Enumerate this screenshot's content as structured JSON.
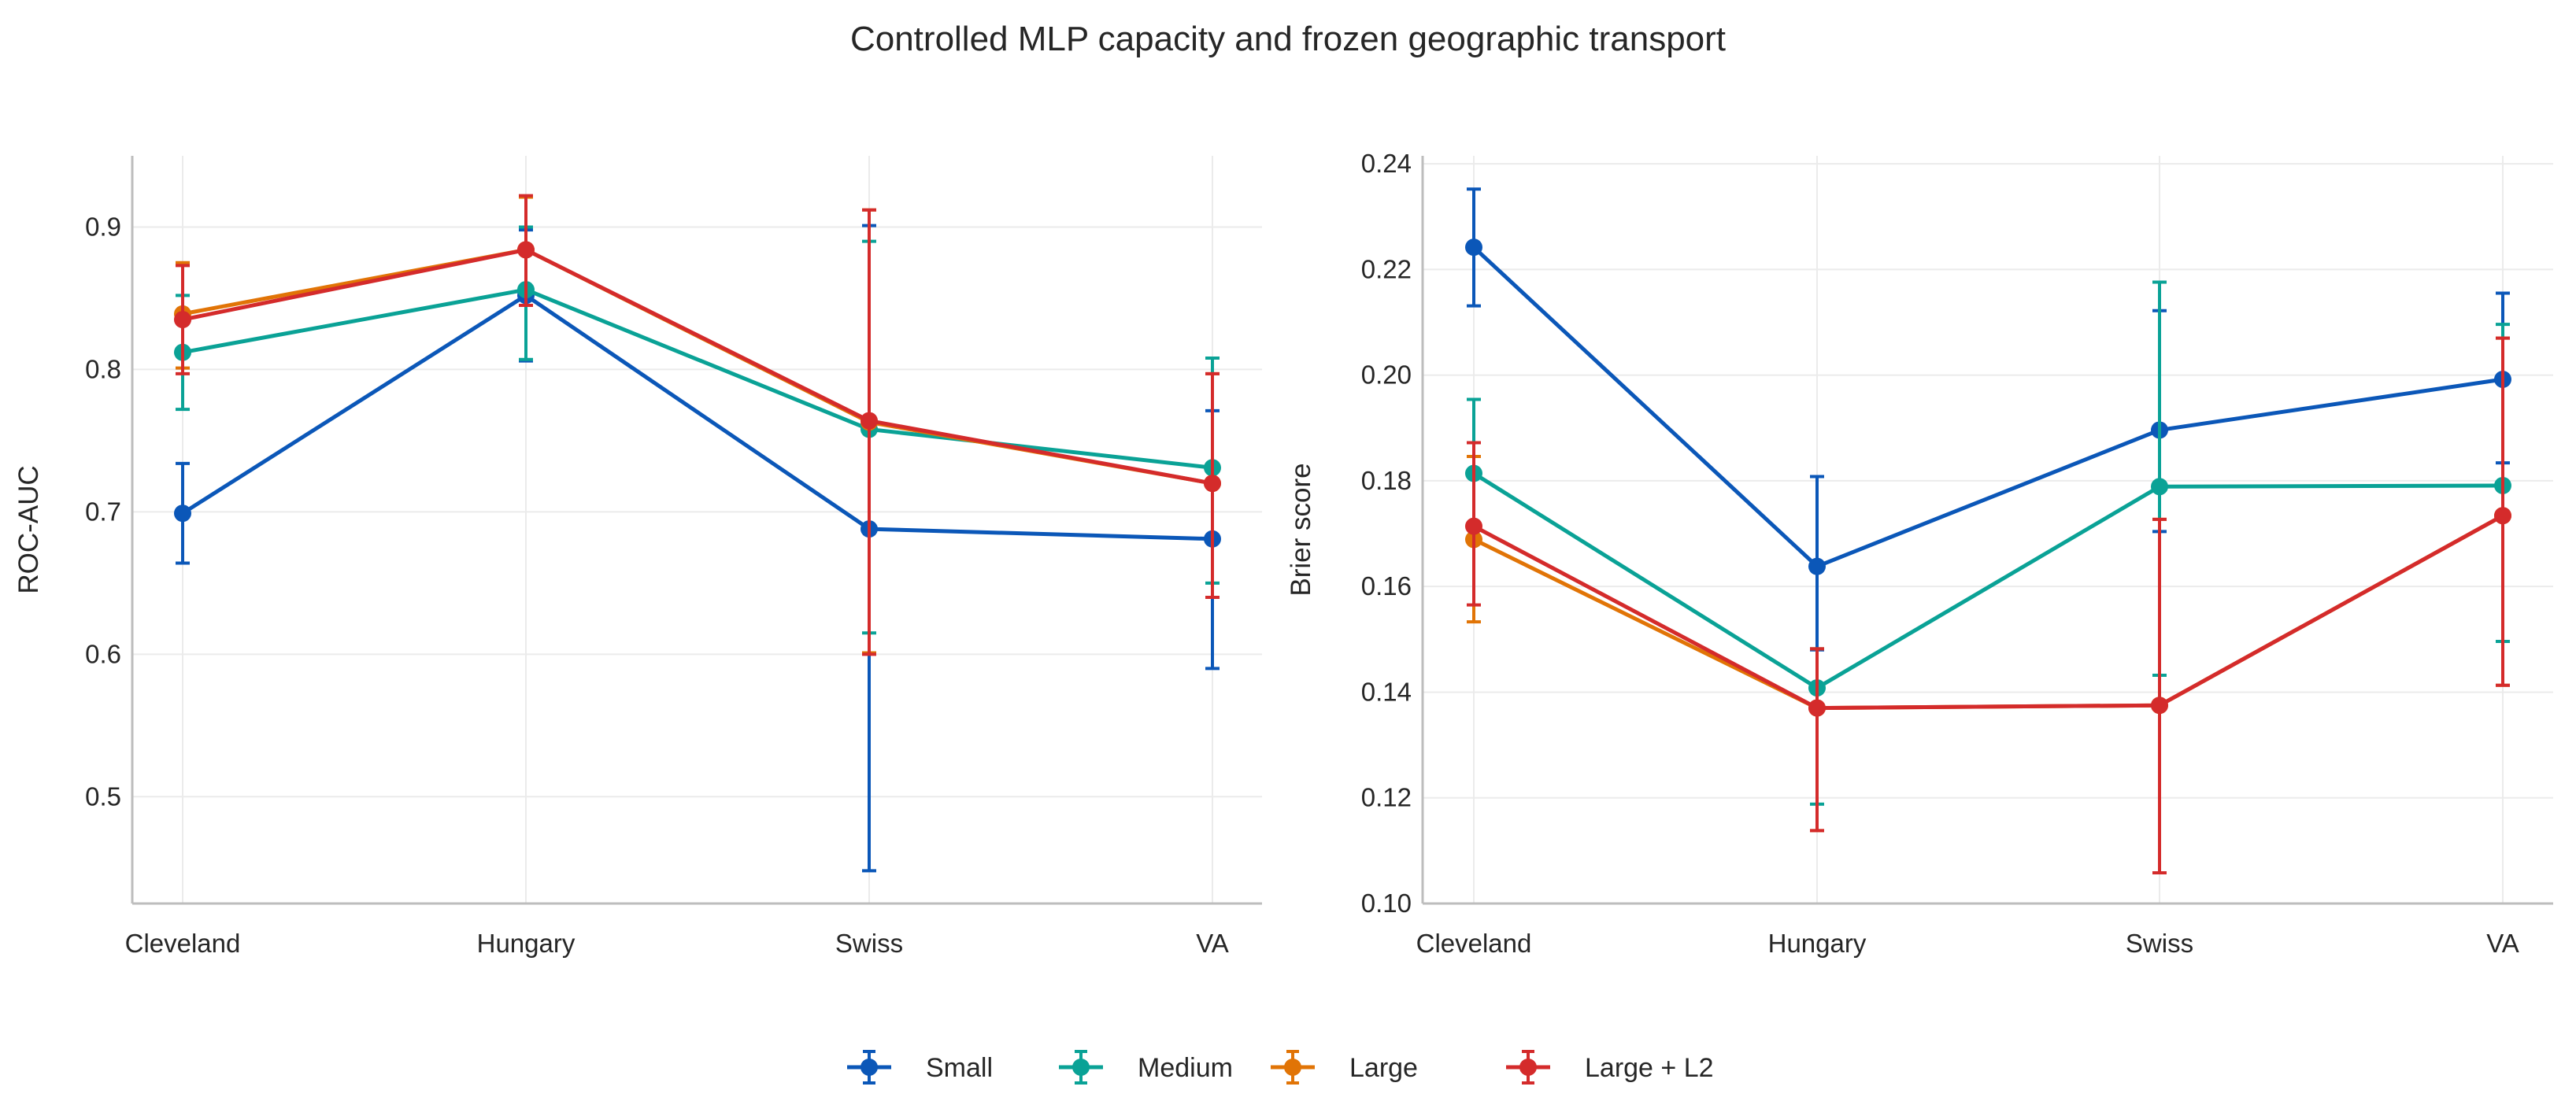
{
  "title": "Controlled MLP capacity and frozen geographic transport",
  "legend": {
    "position": "bottom-center"
  },
  "chart_data": [
    {
      "type": "line",
      "error_bars": true,
      "grid": true,
      "ylabel": "ROC-AUC",
      "xlabel": "",
      "categories": [
        "Cleveland",
        "Hungary",
        "Swiss",
        "VA"
      ],
      "ylim": [
        0.425,
        0.95
      ],
      "yticks": [
        0.5,
        0.6,
        0.7,
        0.8,
        0.9
      ],
      "ytick_labels": [
        "0.5",
        "0.6",
        "0.7",
        "0.8",
        "0.9"
      ],
      "series": [
        {
          "name": "Small",
          "color": "#0b57b8",
          "values": [
            0.699,
            0.852,
            0.688,
            0.681
          ],
          "lower": [
            0.664,
            0.806,
            0.448,
            0.59
          ],
          "upper": [
            0.734,
            0.898,
            0.901,
            0.771
          ]
        },
        {
          "name": "Medium",
          "color": "#0aa296",
          "values": [
            0.812,
            0.856,
            0.758,
            0.731
          ],
          "lower": [
            0.772,
            0.807,
            0.615,
            0.65
          ],
          "upper": [
            0.852,
            0.9,
            0.89,
            0.808
          ]
        },
        {
          "name": "Large",
          "color": "#e17406",
          "values": [
            0.839,
            0.884,
            0.763,
            0.72
          ],
          "lower": [
            0.801,
            0.845,
            0.601,
            0.64
          ],
          "upper": [
            0.875,
            0.921,
            0.912,
            0.797
          ]
        },
        {
          "name": "Large + L2",
          "color": "#d42b2b",
          "values": [
            0.835,
            0.884,
            0.764,
            0.72
          ],
          "lower": [
            0.797,
            0.845,
            0.6,
            0.64
          ],
          "upper": [
            0.873,
            0.922,
            0.912,
            0.797
          ]
        }
      ]
    },
    {
      "type": "line",
      "error_bars": true,
      "grid": true,
      "ylabel": "Brier score",
      "xlabel": "",
      "categories": [
        "Cleveland",
        "Hungary",
        "Swiss",
        "VA"
      ],
      "ylim": [
        0.1,
        0.2415
      ],
      "yticks": [
        0.1,
        0.12,
        0.14,
        0.16,
        0.18,
        0.2,
        0.22,
        0.24
      ],
      "ytick_labels": [
        "0.10",
        "0.12",
        "0.14",
        "0.16",
        "0.18",
        "0.20",
        "0.22",
        "0.24"
      ],
      "series": [
        {
          "name": "Small",
          "color": "#0b57b8",
          "values": [
            0.2242,
            0.1638,
            0.1896,
            0.1992
          ],
          "lower": [
            0.2131,
            0.148,
            0.1704,
            0.1834
          ],
          "upper": [
            0.2352,
            0.1808,
            0.2122,
            0.2155
          ]
        },
        {
          "name": "Medium",
          "color": "#0aa296",
          "values": [
            0.1814,
            0.1408,
            0.1789,
            0.1791
          ],
          "lower": [
            0.1688,
            0.1188,
            0.1432,
            0.1496
          ],
          "upper": [
            0.1954,
            0.1482,
            0.2176,
            0.2096
          ]
        },
        {
          "name": "Large",
          "color": "#e17406",
          "values": [
            0.1689,
            0.137,
            0.1375,
            0.1734
          ],
          "lower": [
            0.1533,
            0.1138,
            0.1058,
            0.1413
          ],
          "upper": [
            0.1846,
            0.1482,
            0.1727,
            0.207
          ]
        },
        {
          "name": "Large + L2",
          "color": "#d42b2b",
          "values": [
            0.1714,
            0.137,
            0.1375,
            0.1734
          ],
          "lower": [
            0.1565,
            0.1138,
            0.1058,
            0.1413
          ],
          "upper": [
            0.1872,
            0.1482,
            0.1727,
            0.207
          ]
        }
      ]
    }
  ]
}
